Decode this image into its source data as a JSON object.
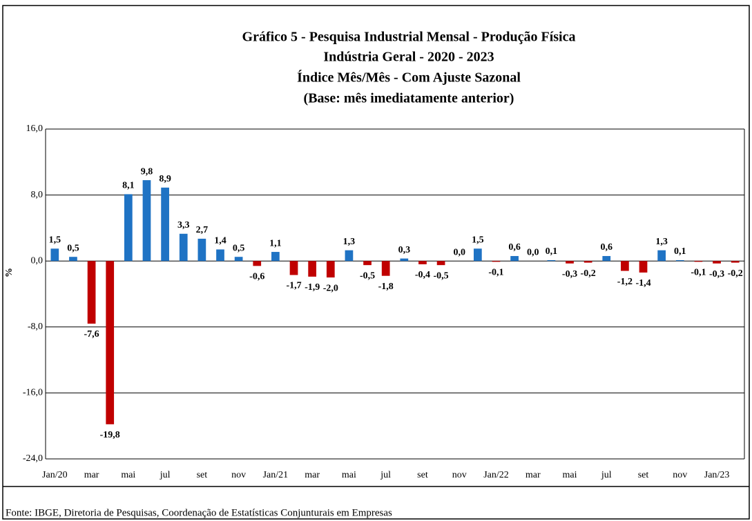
{
  "chart_data": {
    "type": "bar",
    "title": [
      "Gráfico 5 - Pesquisa Industrial Mensal - Produção Física",
      "Indústria Geral - 2020 - 2023",
      "Índice Mês/Mês - Com Ajuste Sazonal",
      "(Base: mês imediatamente anterior)"
    ],
    "y_label": "%",
    "source": "Fonte: IBGE, Diretoria de Pesquisas, Coordenação de Estatísticas Conjunturais em Empresas",
    "categories": [
      "Jan/20",
      null,
      "mar",
      null,
      "mai",
      null,
      "jul",
      null,
      "set",
      null,
      "nov",
      null,
      "Jan/21",
      null,
      "mar",
      null,
      "mai",
      null,
      "jul",
      null,
      "set",
      null,
      "nov",
      null,
      "Jan/22",
      null,
      "mar",
      null,
      "mai",
      null,
      "jul",
      null,
      "set",
      null,
      "nov",
      null,
      "Jan/23",
      null
    ],
    "values": [
      1.5,
      0.5,
      -7.6,
      -19.8,
      8.1,
      9.8,
      8.9,
      3.3,
      2.7,
      1.4,
      0.5,
      -0.6,
      1.1,
      -1.7,
      -1.9,
      -2.0,
      1.3,
      -0.5,
      -1.8,
      0.3,
      -0.4,
      -0.5,
      0.0,
      1.5,
      -0.1,
      0.6,
      0.0,
      0.1,
      -0.3,
      -0.2,
      0.6,
      -1.2,
      -1.4,
      1.3,
      0.1,
      -0.1,
      -0.3,
      -0.2
    ],
    "value_labels": [
      "1,5",
      "0,5",
      "-7,6",
      "-19,8",
      "8,1",
      "9,8",
      "8,9",
      "3,3",
      "2,7",
      "1,4",
      "0,5",
      "-0,6",
      "1,1",
      "-1,7",
      "-1,9",
      "-2,0",
      "1,3",
      "-0,5",
      "-1,8",
      "0,3",
      "-0,4",
      "-0,5",
      "0,0",
      "1,5",
      "-0,1",
      "0,6",
      "0,0",
      "0,1",
      "-0,3",
      "-0,2",
      "0,6",
      "-1,2",
      "-1,4",
      "1,3",
      "0,1",
      "-0,1",
      "-0,3",
      "-0,2"
    ],
    "positive_color": "#1f73c4",
    "negative_color": "#c00000",
    "ylim": [
      -24,
      16
    ],
    "yticks": [
      {
        "value": -24,
        "label": "-24,0"
      },
      {
        "value": -16,
        "label": "-16,0"
      },
      {
        "value": -8,
        "label": "-8,0"
      },
      {
        "value": 0,
        "label": "0,0"
      },
      {
        "value": 8,
        "label": "8,0"
      },
      {
        "value": 16,
        "label": "16,0"
      }
    ],
    "grid": true
  }
}
